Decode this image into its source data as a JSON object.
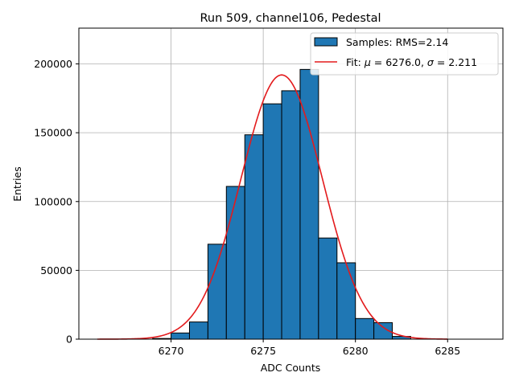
{
  "chart_data": {
    "type": "bar",
    "title": "Run 509, channel106, Pedestal",
    "xlabel": "ADC Counts",
    "ylabel": "Entries",
    "xlim": [
      6265,
      6288
    ],
    "ylim": [
      0,
      226000
    ],
    "xticks": [
      6270,
      6275,
      6280,
      6285
    ],
    "yticks": [
      0,
      50000,
      100000,
      150000,
      200000
    ],
    "grid": true,
    "legend_position": "top-right",
    "histogram": {
      "name": "Samples: RMS=2.14",
      "color": "#1f77b4",
      "edgecolor": "#000000",
      "bin_edges": [
        6269,
        6270,
        6271,
        6272,
        6273,
        6274,
        6275,
        6276,
        6277,
        6278,
        6279,
        6280,
        6281,
        6282,
        6283
      ],
      "counts": [
        500,
        4500,
        12500,
        69000,
        111000,
        148500,
        171000,
        180500,
        196000,
        73500,
        55500,
        15000,
        12000,
        2000
      ]
    },
    "fit": {
      "name": "Fit: μ = 6276.0, σ = 2.211",
      "label_prefix": "Fit: ",
      "mu_symbol": "μ",
      "mu_text": " = 6276.0, ",
      "sigma_symbol": "σ",
      "sigma_text": " = 2.211",
      "color": "#e31a1c",
      "mu": 6276.0,
      "sigma": 2.211,
      "amplitude": 192000,
      "x_range": [
        6266,
        6285
      ]
    }
  }
}
